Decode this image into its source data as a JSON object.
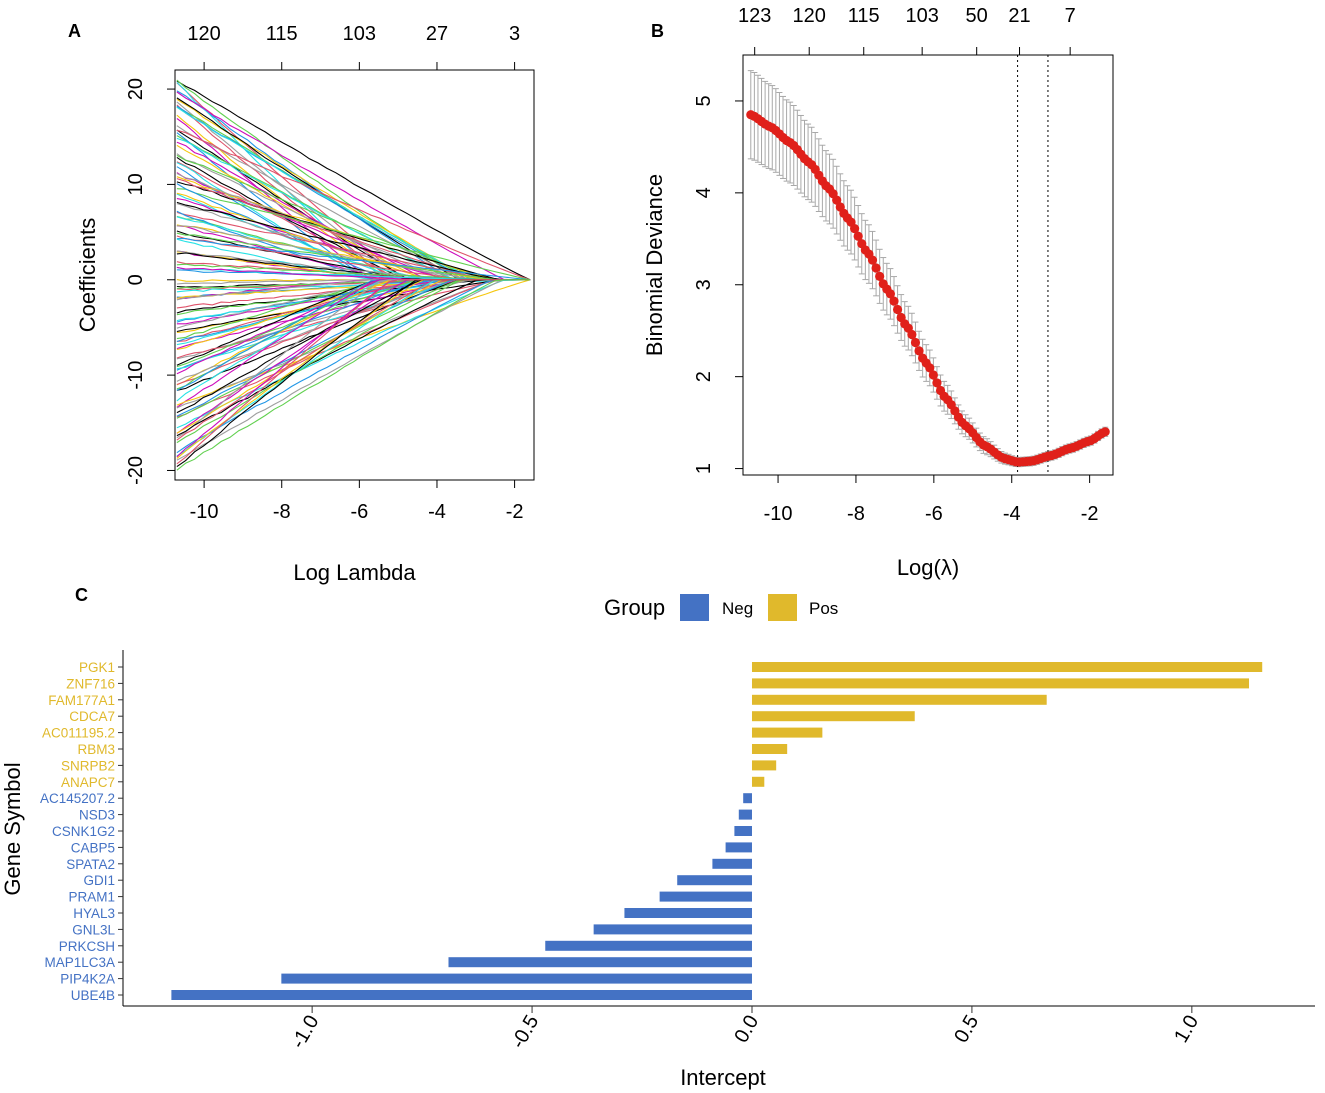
{
  "panels": {
    "a": {
      "letter": "A"
    },
    "b": {
      "letter": "B"
    },
    "c": {
      "letter": "C"
    }
  },
  "colors": {
    "neg": "#4472C4",
    "pos": "#E0B92C",
    "point": "#E0201A",
    "errorbar": "#A8A8A8",
    "axis": "#000000",
    "path_palette": [
      "#000000",
      "#DF536B",
      "#61D04F",
      "#2297E6",
      "#28E2E5",
      "#CD0BBC",
      "#F5C710",
      "#9E9E9E"
    ]
  },
  "chart_data": [
    {
      "id": "A",
      "type": "line",
      "title": "",
      "xlabel": "Log Lambda",
      "ylabel": "Coefficients",
      "xlim": [
        -10.75,
        -1.5
      ],
      "ylim": [
        -21,
        22
      ],
      "x_ticks": [
        -10,
        -8,
        -6,
        -4,
        -2
      ],
      "y_ticks": [
        -20,
        -10,
        0,
        10,
        20
      ],
      "top_axis": {
        "at": [
          -10,
          -8,
          -6,
          -4,
          -2
        ],
        "labels": [
          "120",
          "115",
          "103",
          "27",
          "3"
        ]
      },
      "x_start": -10.7,
      "x_end": -1.6,
      "num_paths": 123,
      "coef_range_at_start": [
        -20,
        21.5
      ],
      "series_description": "Coefficient profile paths (one per gene) that shrink toward 0 as log lambda increases"
    },
    {
      "id": "B",
      "type": "scatter",
      "title": "",
      "xlabel": "Log(λ)",
      "ylabel": "Binomial Deviance",
      "xlim": [
        -10.9,
        -1.4
      ],
      "ylim": [
        0.93,
        5.5
      ],
      "x_ticks": [
        -10,
        -8,
        -6,
        -4,
        -2
      ],
      "y_ticks": [
        1,
        2,
        3,
        4,
        5
      ],
      "top_axis": {
        "at": [
          -10.6,
          -9.2,
          -7.8,
          -6.3,
          -4.9,
          -3.8,
          -2.5
        ],
        "labels": [
          "123",
          "120",
          "115",
          "103",
          "50",
          "21",
          "7"
        ]
      },
      "vlines": [
        -3.85,
        -3.07
      ],
      "x": [
        -10.7,
        -10.2,
        -9.7,
        -9.2,
        -8.7,
        -8.2,
        -7.7,
        -7.2,
        -6.7,
        -6.2,
        -5.7,
        -5.2,
        -4.7,
        -4.2,
        -3.85,
        -3.5,
        -3.0,
        -2.5,
        -2.0,
        -1.6
      ],
      "y": [
        4.85,
        4.72,
        4.55,
        4.33,
        4.05,
        3.72,
        3.35,
        2.95,
        2.55,
        2.15,
        1.77,
        1.47,
        1.25,
        1.11,
        1.07,
        1.08,
        1.14,
        1.22,
        1.3,
        1.4
      ],
      "y_err": [
        0.48,
        0.46,
        0.44,
        0.41,
        0.38,
        0.35,
        0.32,
        0.28,
        0.24,
        0.2,
        0.16,
        0.12,
        0.09,
        0.06,
        0.05,
        0.05,
        0.05,
        0.05,
        0.05,
        0.05
      ]
    },
    {
      "id": "C",
      "type": "bar",
      "orientation": "horizontal",
      "title": "",
      "xlabel": "Intercept",
      "ylabel": "Gene Symbol",
      "xlim": [
        -1.43,
        1.28
      ],
      "x_ticks": [
        -1.0,
        -0.5,
        0.0,
        0.5,
        1.0
      ],
      "x_tick_labels": [
        "-1.0",
        "-0.5",
        "0.0",
        "0.5",
        "1.0"
      ],
      "legend": {
        "title": "Group",
        "entries": [
          "Neg",
          "Pos"
        ],
        "position": "top"
      },
      "categories": [
        "PGK1",
        "ZNF716",
        "FAM177A1",
        "CDCA7",
        "AC011195.2",
        "RBM3",
        "SNRPB2",
        "ANAPC7",
        "AC145207.2",
        "NSD3",
        "CSNK1G2",
        "CABP5",
        "SPATA2",
        "GDI1",
        "PRAM1",
        "HYAL3",
        "GNL3L",
        "PRKCSH",
        "MAP1LC3A",
        "PIP4K2A",
        "UBE4B"
      ],
      "values": [
        1.16,
        1.13,
        0.67,
        0.37,
        0.16,
        0.08,
        0.055,
        0.028,
        -0.02,
        -0.03,
        -0.04,
        -0.06,
        -0.09,
        -0.17,
        -0.21,
        -0.29,
        -0.36,
        -0.47,
        -0.69,
        -1.07,
        -1.32
      ],
      "groups": [
        "Pos",
        "Pos",
        "Pos",
        "Pos",
        "Pos",
        "Pos",
        "Pos",
        "Pos",
        "Neg",
        "Neg",
        "Neg",
        "Neg",
        "Neg",
        "Neg",
        "Neg",
        "Neg",
        "Neg",
        "Neg",
        "Neg",
        "Neg",
        "Neg"
      ]
    }
  ]
}
